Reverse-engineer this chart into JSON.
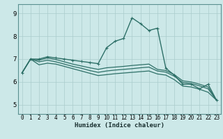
{
  "title": "",
  "xlabel": "Humidex (Indice chaleur)",
  "bg_color": "#cce8e8",
  "grid_color": "#aacccc",
  "line_color": "#2e7068",
  "spine_color": "#5a9090",
  "xlim": [
    -0.5,
    23.5
  ],
  "ylim": [
    4.6,
    9.4
  ],
  "yticks": [
    5,
    6,
    7,
    8,
    9
  ],
  "xticks": [
    0,
    1,
    2,
    3,
    4,
    5,
    6,
    7,
    8,
    9,
    10,
    11,
    12,
    13,
    14,
    15,
    16,
    17,
    18,
    19,
    20,
    21,
    22,
    23
  ],
  "lines": [
    {
      "x": [
        0,
        1,
        2,
        3,
        4,
        5,
        6,
        7,
        8,
        9,
        10,
        11,
        12,
        13,
        14,
        15,
        16,
        17,
        18,
        19,
        20,
        21,
        22,
        23
      ],
      "y": [
        6.4,
        7.0,
        7.0,
        7.1,
        7.05,
        7.0,
        6.95,
        6.9,
        6.85,
        6.8,
        7.5,
        7.78,
        7.9,
        8.8,
        8.55,
        8.25,
        8.35,
        6.6,
        6.3,
        5.9,
        5.9,
        5.7,
        5.9,
        5.2
      ],
      "marker": "+",
      "lw": 1.0
    },
    {
      "x": [
        0,
        1,
        2,
        3,
        4,
        5,
        6,
        7,
        8,
        9,
        10,
        11,
        12,
        13,
        14,
        15,
        16,
        17,
        18,
        19,
        20,
        21,
        22,
        23
      ],
      "y": [
        6.4,
        7.0,
        6.95,
        7.05,
        6.98,
        6.88,
        6.78,
        6.7,
        6.62,
        6.55,
        6.62,
        6.65,
        6.68,
        6.72,
        6.75,
        6.78,
        6.55,
        6.5,
        6.32,
        6.05,
        6.0,
        5.9,
        5.78,
        5.2
      ],
      "marker": null,
      "lw": 0.9
    },
    {
      "x": [
        0,
        1,
        2,
        3,
        4,
        5,
        6,
        7,
        8,
        9,
        10,
        11,
        12,
        13,
        14,
        15,
        16,
        17,
        18,
        19,
        20,
        21,
        22,
        23
      ],
      "y": [
        6.4,
        7.0,
        6.88,
        6.95,
        6.88,
        6.78,
        6.68,
        6.6,
        6.5,
        6.42,
        6.48,
        6.52,
        6.55,
        6.58,
        6.62,
        6.65,
        6.48,
        6.43,
        6.25,
        5.98,
        5.93,
        5.83,
        5.7,
        5.2
      ],
      "marker": null,
      "lw": 0.9
    },
    {
      "x": [
        0,
        1,
        2,
        3,
        4,
        5,
        6,
        7,
        8,
        9,
        10,
        11,
        12,
        13,
        14,
        15,
        16,
        17,
        18,
        19,
        20,
        21,
        22,
        23
      ],
      "y": [
        6.4,
        7.0,
        6.75,
        6.82,
        6.78,
        6.68,
        6.58,
        6.48,
        6.38,
        6.28,
        6.32,
        6.36,
        6.39,
        6.42,
        6.45,
        6.48,
        6.35,
        6.3,
        6.1,
        5.82,
        5.78,
        5.68,
        5.55,
        5.2
      ],
      "marker": null,
      "lw": 0.9
    }
  ]
}
